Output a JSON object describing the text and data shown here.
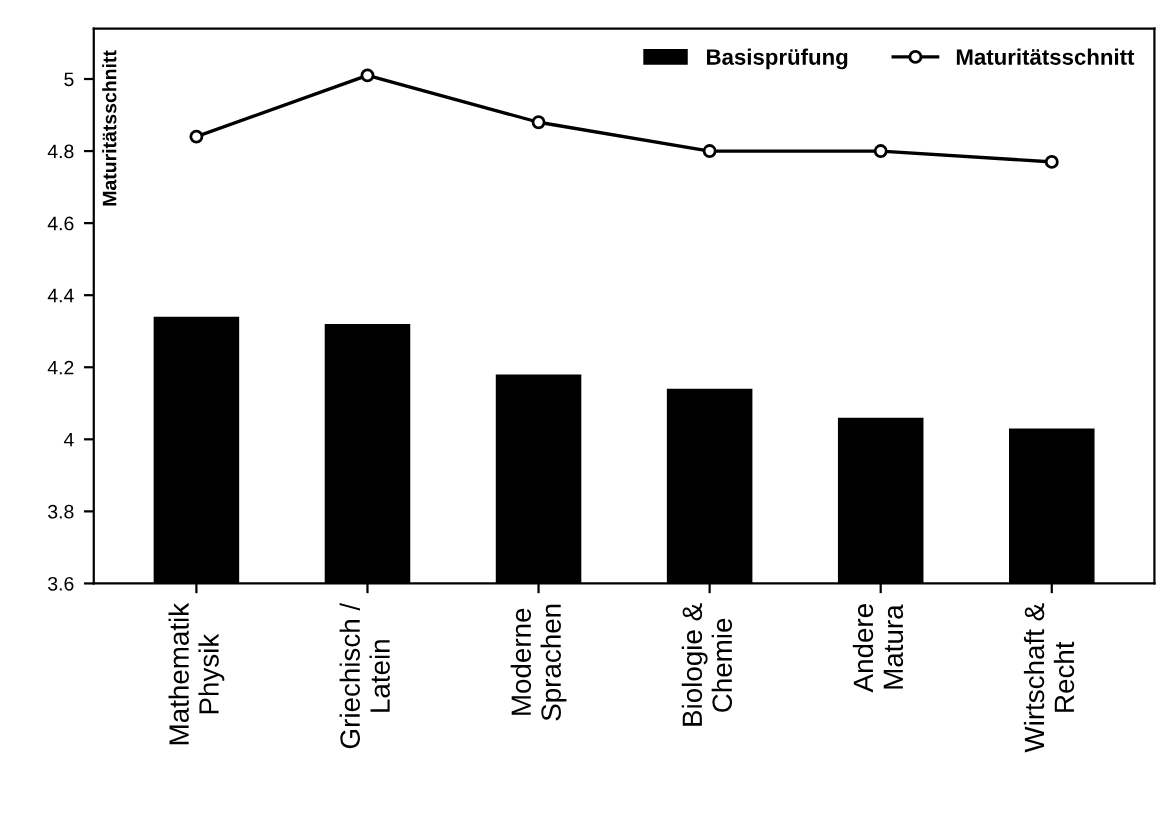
{
  "chart_data": {
    "type": "bar",
    "ylabel": "Maturitätsschnitt",
    "categories": [
      "Mathematik\nPhysik",
      "Griechisch /\nLatein",
      "Moderne\nSprachen",
      "Biologie &\nChemie",
      "Andere\nMatura",
      "Wirtschaft &\nRecht"
    ],
    "series": [
      {
        "name": "Basisprüfung",
        "color": "#000000",
        "values": [
          4.34,
          4.32,
          4.18,
          4.14,
          4.06,
          4.03
        ]
      },
      {
        "name": "Maturitätsschnitt",
        "type": "line",
        "color": "#000000",
        "marker": "circle",
        "values": [
          4.84,
          5.01,
          4.88,
          4.8,
          4.8,
          4.77
        ]
      }
    ],
    "ylim": [
      3.6,
      5.14
    ],
    "yticks": [
      3.6,
      3.8,
      4,
      4.2,
      4.4,
      4.6,
      4.8,
      5
    ],
    "legend": "top right",
    "grid": false
  }
}
